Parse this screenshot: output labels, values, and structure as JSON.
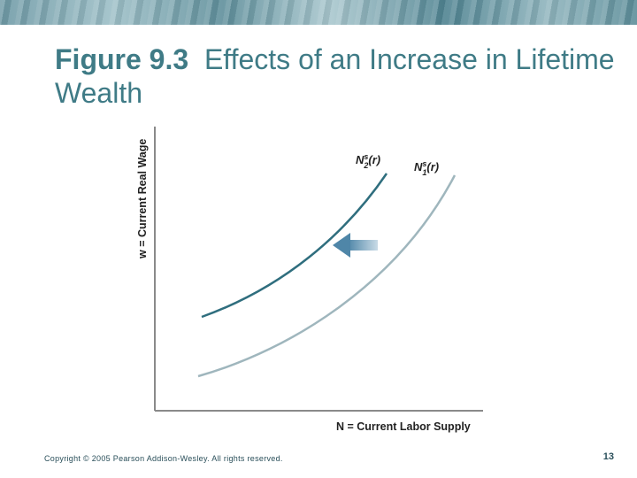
{
  "slide": {
    "title_figure": "Figure 9.3",
    "title_text": "Effects of an Increase in Lifetime Wealth",
    "footer": "Copyright © 2005 Pearson Addison-Wesley. All rights reserved.",
    "page_number": "13"
  },
  "diagram": {
    "y_axis_label": "w = Current Real Wage",
    "x_axis_label": "N = Current Labor Supply",
    "curve_new_label": "N",
    "curve_new_sup": "s",
    "curve_new_sub": "2",
    "curve_new_arg": "(r)",
    "curve_old_label": "N",
    "curve_old_sup": "s",
    "curve_old_sub": "1",
    "curve_old_arg": "(r)",
    "colors": {
      "title": "#3f7b86",
      "curve_new": "#2f6e7e",
      "curve_old": "#9fb6bd",
      "axis": "#8a8a8a",
      "arrow": "#5f8fb0"
    }
  }
}
